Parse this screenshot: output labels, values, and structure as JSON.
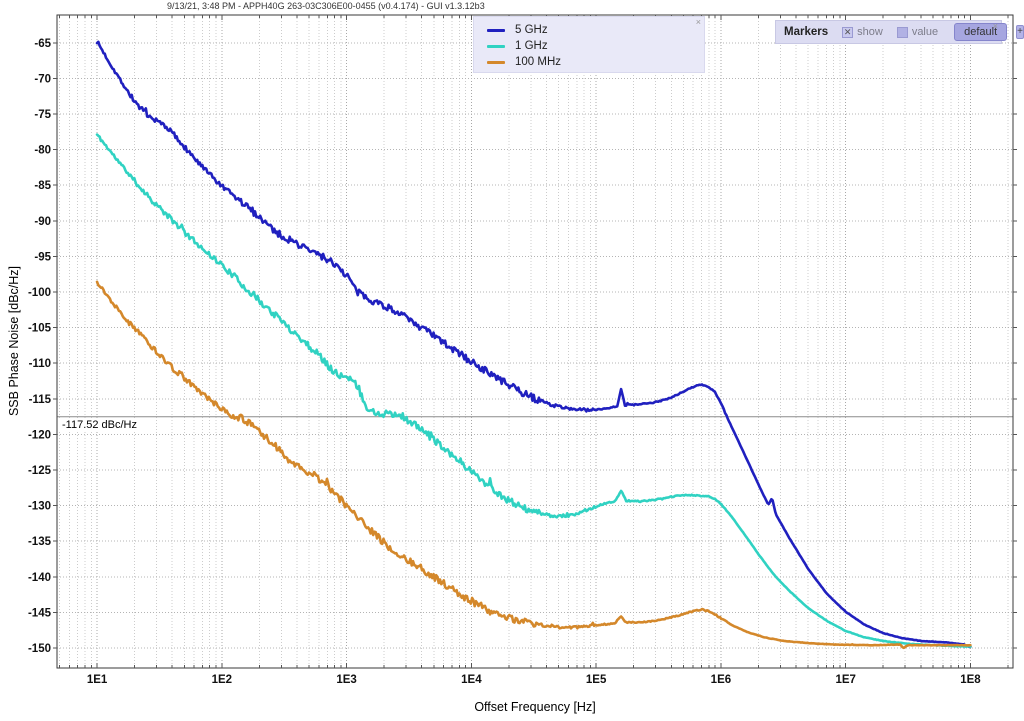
{
  "window": {
    "title": "9/13/21, 3:48 PM - APPH40G 263-03C306E00-0455 (v0.4.174) - GUI v1.3.12b3"
  },
  "legend": {
    "close_glyph": "×",
    "items": [
      {
        "label": "5 GHz",
        "color": "#2020bf"
      },
      {
        "label": "1 GHz",
        "color": "#30d2c2"
      },
      {
        "label": "100 MHz",
        "color": "#d4882b"
      }
    ]
  },
  "markers_panel": {
    "title": "Markers",
    "show_label": "show",
    "show_checked": true,
    "checked_glyph": "✕",
    "value_label": "value",
    "value_checked": false,
    "default_button_label": "default",
    "add_button_label": "+",
    "close_glyph": "×"
  },
  "marker_readout": {
    "text": "-117.52 dBc/Hz",
    "value_dbc_hz": -117.52
  },
  "chart_data": {
    "type": "line",
    "x_scale": "log",
    "xlabel": "Offset Frequency [Hz]",
    "ylabel": "SSB Phase Noise [dBc/Hz]",
    "x_log_range": [
      0.679,
      8.341
    ],
    "y_range": [
      -152.8,
      -61.1
    ],
    "grid": "dotted",
    "legend_position": "top-center",
    "marker_line_value": -117.52,
    "x_ticks": [
      {
        "logf": 1,
        "label": "1E1"
      },
      {
        "logf": 2,
        "label": "1E2"
      },
      {
        "logf": 3,
        "label": "1E3"
      },
      {
        "logf": 4,
        "label": "1E4"
      },
      {
        "logf": 5,
        "label": "1E5"
      },
      {
        "logf": 6,
        "label": "1E6"
      },
      {
        "logf": 7,
        "label": "1E7"
      },
      {
        "logf": 8,
        "label": "1E8"
      }
    ],
    "y_ticks": [
      {
        "value": -65,
        "label": "-65"
      },
      {
        "value": -70,
        "label": "-70"
      },
      {
        "value": -75,
        "label": "-75"
      },
      {
        "value": -80,
        "label": "-80"
      },
      {
        "value": -85,
        "label": "-85"
      },
      {
        "value": -90,
        "label": "-90"
      },
      {
        "value": -95,
        "label": "-95"
      },
      {
        "value": -100,
        "label": "-100"
      },
      {
        "value": -105,
        "label": "-105"
      },
      {
        "value": -110,
        "label": "-110"
      },
      {
        "value": -115,
        "label": "-115"
      },
      {
        "value": -120,
        "label": "-120"
      },
      {
        "value": -125,
        "label": "-125"
      },
      {
        "value": -130,
        "label": "-130"
      },
      {
        "value": -135,
        "label": "-135"
      },
      {
        "value": -140,
        "label": "-140"
      },
      {
        "value": -145,
        "label": "-145"
      },
      {
        "value": -150,
        "label": "-150"
      }
    ],
    "series": [
      {
        "name": "5 GHz",
        "slug": "5ghz",
        "color": "#2020bf",
        "seed": 7,
        "points_log10hz_dbchz": [
          [
            1.0,
            -64.8
          ],
          [
            1.1,
            -67.8
          ],
          [
            1.2,
            -70.6
          ],
          [
            1.3,
            -73.2
          ],
          [
            1.42,
            -75.6
          ],
          [
            1.52,
            -76.3
          ],
          [
            1.58,
            -77.2
          ],
          [
            1.7,
            -79.6
          ],
          [
            1.85,
            -82.6
          ],
          [
            2.0,
            -85.2
          ],
          [
            2.15,
            -87.3
          ],
          [
            2.3,
            -89.4
          ],
          [
            2.45,
            -91.8
          ],
          [
            2.6,
            -93.2
          ],
          [
            2.72,
            -94.3
          ],
          [
            2.87,
            -95.6
          ],
          [
            2.95,
            -96.8
          ],
          [
            3.02,
            -98.0
          ],
          [
            3.08,
            -100.0
          ],
          [
            3.2,
            -101.1
          ],
          [
            3.3,
            -101.9
          ],
          [
            3.4,
            -102.8
          ],
          [
            3.5,
            -103.9
          ],
          [
            3.6,
            -105.0
          ],
          [
            3.7,
            -106.2
          ],
          [
            3.8,
            -107.4
          ],
          [
            3.9,
            -108.6
          ],
          [
            4.0,
            -109.8
          ],
          [
            4.1,
            -110.9
          ],
          [
            4.2,
            -112.0
          ],
          [
            4.35,
            -113.6
          ],
          [
            4.5,
            -114.9
          ],
          [
            4.65,
            -115.9
          ],
          [
            4.8,
            -116.4
          ],
          [
            4.95,
            -116.6
          ],
          [
            5.1,
            -116.3
          ],
          [
            5.17,
            -116.0
          ],
          [
            5.2,
            -113.6
          ],
          [
            5.23,
            -115.9
          ],
          [
            5.35,
            -115.8
          ],
          [
            5.5,
            -115.4
          ],
          [
            5.6,
            -114.8
          ],
          [
            5.7,
            -114.0
          ],
          [
            5.78,
            -113.3
          ],
          [
            5.84,
            -113.0
          ],
          [
            5.9,
            -113.3
          ],
          [
            5.95,
            -114.0
          ],
          [
            6.0,
            -115.6
          ],
          [
            6.05,
            -117.6
          ],
          [
            6.12,
            -120.2
          ],
          [
            6.2,
            -123.2
          ],
          [
            6.3,
            -127.0
          ],
          [
            6.38,
            -129.9
          ],
          [
            6.41,
            -128.9
          ],
          [
            6.44,
            -131.2
          ],
          [
            6.55,
            -134.6
          ],
          [
            6.7,
            -138.9
          ],
          [
            6.85,
            -142.4
          ],
          [
            7.0,
            -144.9
          ],
          [
            7.15,
            -146.7
          ],
          [
            7.3,
            -147.9
          ],
          [
            7.45,
            -148.6
          ],
          [
            7.6,
            -149.0
          ],
          [
            7.8,
            -149.2
          ],
          [
            7.95,
            -149.5
          ],
          [
            8.0,
            -149.9
          ]
        ]
      },
      {
        "name": "1 GHz",
        "slug": "1ghz",
        "color": "#30d2c2",
        "seed": 11,
        "points_log10hz_dbchz": [
          [
            1.0,
            -77.9
          ],
          [
            1.15,
            -81.2
          ],
          [
            1.3,
            -84.4
          ],
          [
            1.45,
            -87.3
          ],
          [
            1.6,
            -89.9
          ],
          [
            1.75,
            -92.4
          ],
          [
            1.9,
            -94.7
          ],
          [
            2.0,
            -96.2
          ],
          [
            2.12,
            -98.2
          ],
          [
            2.25,
            -100.4
          ],
          [
            2.4,
            -102.8
          ],
          [
            2.55,
            -105.2
          ],
          [
            2.7,
            -107.6
          ],
          [
            2.8,
            -109.3
          ],
          [
            2.87,
            -110.6
          ],
          [
            2.92,
            -111.4
          ],
          [
            2.97,
            -111.8
          ],
          [
            3.02,
            -112.3
          ],
          [
            3.07,
            -112.8
          ],
          [
            3.12,
            -114.6
          ],
          [
            3.17,
            -116.4
          ],
          [
            3.25,
            -117.0
          ],
          [
            3.35,
            -117.2
          ],
          [
            3.45,
            -117.5
          ],
          [
            3.55,
            -118.7
          ],
          [
            3.65,
            -120.0
          ],
          [
            3.75,
            -121.4
          ],
          [
            3.85,
            -122.9
          ],
          [
            3.95,
            -124.4
          ],
          [
            4.05,
            -125.9
          ],
          [
            4.15,
            -127.3
          ],
          [
            4.25,
            -128.8
          ],
          [
            4.38,
            -130.1
          ],
          [
            4.5,
            -130.9
          ],
          [
            4.65,
            -131.5
          ],
          [
            4.8,
            -131.4
          ],
          [
            4.95,
            -130.4
          ],
          [
            5.05,
            -129.8
          ],
          [
            5.15,
            -129.4
          ],
          [
            5.2,
            -127.9
          ],
          [
            5.24,
            -129.3
          ],
          [
            5.35,
            -129.4
          ],
          [
            5.45,
            -129.2
          ],
          [
            5.55,
            -129.0
          ],
          [
            5.62,
            -128.7
          ],
          [
            5.72,
            -128.5
          ],
          [
            5.82,
            -128.6
          ],
          [
            5.9,
            -128.7
          ],
          [
            5.95,
            -129.0
          ],
          [
            6.0,
            -129.8
          ],
          [
            6.08,
            -131.4
          ],
          [
            6.18,
            -133.8
          ],
          [
            6.3,
            -136.8
          ],
          [
            6.42,
            -139.6
          ],
          [
            6.55,
            -142.0
          ],
          [
            6.7,
            -144.4
          ],
          [
            6.85,
            -146.2
          ],
          [
            7.0,
            -147.6
          ],
          [
            7.15,
            -148.5
          ],
          [
            7.3,
            -149.0
          ],
          [
            7.5,
            -149.4
          ],
          [
            7.7,
            -149.6
          ],
          [
            8.0,
            -149.8
          ]
        ]
      },
      {
        "name": "100 MHz",
        "slug": "100mhz",
        "color": "#d4882b",
        "seed": 13,
        "points_log10hz_dbchz": [
          [
            1.0,
            -98.6
          ],
          [
            1.12,
            -101.4
          ],
          [
            1.25,
            -104.2
          ],
          [
            1.38,
            -106.6
          ],
          [
            1.5,
            -108.8
          ],
          [
            1.62,
            -110.9
          ],
          [
            1.75,
            -112.9
          ],
          [
            1.88,
            -114.8
          ],
          [
            2.0,
            -116.5
          ],
          [
            2.08,
            -117.3
          ],
          [
            2.17,
            -117.8
          ],
          [
            2.28,
            -119.3
          ],
          [
            2.4,
            -121.2
          ],
          [
            2.52,
            -123.2
          ],
          [
            2.6,
            -124.5
          ],
          [
            2.68,
            -125.3
          ],
          [
            2.76,
            -125.9
          ],
          [
            2.85,
            -127.3
          ],
          [
            2.95,
            -129.1
          ],
          [
            3.05,
            -131.0
          ],
          [
            3.15,
            -132.8
          ],
          [
            3.28,
            -134.9
          ],
          [
            3.4,
            -136.6
          ],
          [
            3.55,
            -138.3
          ],
          [
            3.7,
            -140.0
          ],
          [
            3.85,
            -141.8
          ],
          [
            4.0,
            -143.4
          ],
          [
            4.15,
            -144.8
          ],
          [
            4.3,
            -145.8
          ],
          [
            4.45,
            -146.4
          ],
          [
            4.6,
            -146.9
          ],
          [
            4.75,
            -147.1
          ],
          [
            4.9,
            -147.0
          ],
          [
            5.05,
            -146.7
          ],
          [
            5.15,
            -146.5
          ],
          [
            5.2,
            -145.5
          ],
          [
            5.24,
            -146.4
          ],
          [
            5.35,
            -146.4
          ],
          [
            5.5,
            -146.1
          ],
          [
            5.65,
            -145.5
          ],
          [
            5.78,
            -144.8
          ],
          [
            5.85,
            -144.6
          ],
          [
            5.92,
            -144.9
          ],
          [
            6.0,
            -145.8
          ],
          [
            6.1,
            -146.9
          ],
          [
            6.22,
            -147.8
          ],
          [
            6.35,
            -148.5
          ],
          [
            6.5,
            -149.0
          ],
          [
            6.7,
            -149.3
          ],
          [
            6.9,
            -149.5
          ],
          [
            7.2,
            -149.6
          ],
          [
            7.44,
            -149.5
          ],
          [
            7.46,
            -150.0
          ],
          [
            7.5,
            -149.6
          ],
          [
            8.0,
            -149.6
          ]
        ]
      }
    ]
  }
}
